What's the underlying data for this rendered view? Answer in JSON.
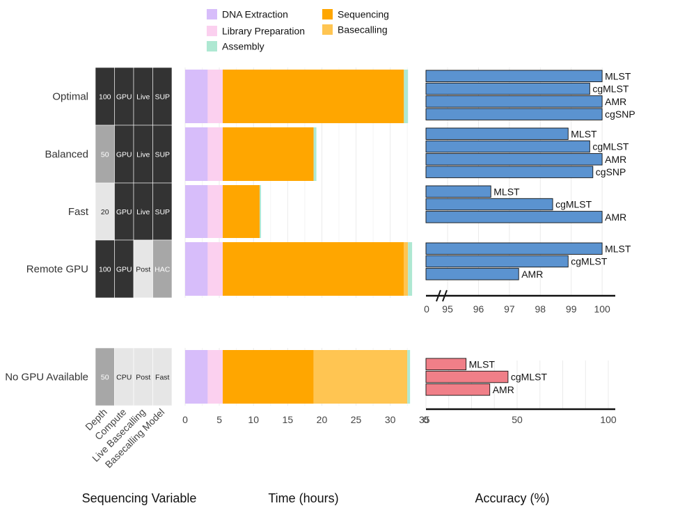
{
  "chart_data": {
    "type": "figure",
    "colors": {
      "dna_extraction": "#d7bdfa",
      "library_preparation": "#fbd0ef",
      "assembly": "#aee8d2",
      "sequencing": "#ffa600",
      "basecalling": "#ffc552",
      "accuracy_gpu": "#5b93d0",
      "accuracy_nogpu": "#f07f88",
      "dark_cell": "#333333",
      "mid_cell": "#a7a7a7",
      "light_cell": "#e6e6e6",
      "grid": "#ebebeb"
    },
    "legend": [
      {
        "key": "dna_extraction",
        "label": "DNA Extraction"
      },
      {
        "key": "library_preparation",
        "label": "Library Preparation"
      },
      {
        "key": "assembly",
        "label": "Assembly"
      },
      {
        "key": "sequencing",
        "label": "Sequencing"
      },
      {
        "key": "basecalling",
        "label": "Basecalling"
      }
    ],
    "scenarios": [
      {
        "name": "Optimal",
        "variables": [
          {
            "value": "100",
            "level": "dark"
          },
          {
            "value": "GPU",
            "level": "dark"
          },
          {
            "value": "Live",
            "level": "dark"
          },
          {
            "value": "SUP",
            "level": "dark"
          }
        ],
        "time_segments": [
          {
            "key": "dna_extraction",
            "hours": 3.3
          },
          {
            "key": "library_preparation",
            "hours": 2.2
          },
          {
            "key": "sequencing",
            "hours": 26.5
          },
          {
            "key": "assembly",
            "hours": 0.6
          }
        ],
        "accuracy": [
          {
            "metric": "MLST",
            "value": 100
          },
          {
            "metric": "cgMLST",
            "value": 99.6
          },
          {
            "metric": "AMR",
            "value": 100
          },
          {
            "metric": "cgSNP",
            "value": 100
          }
        ]
      },
      {
        "name": "Balanced",
        "variables": [
          {
            "value": "50",
            "level": "mid"
          },
          {
            "value": "GPU",
            "level": "dark"
          },
          {
            "value": "Live",
            "level": "dark"
          },
          {
            "value": "SUP",
            "level": "dark"
          }
        ],
        "time_segments": [
          {
            "key": "dna_extraction",
            "hours": 3.3
          },
          {
            "key": "library_preparation",
            "hours": 2.2
          },
          {
            "key": "sequencing",
            "hours": 13.3
          },
          {
            "key": "assembly",
            "hours": 0.4
          }
        ],
        "accuracy": [
          {
            "metric": "MLST",
            "value": 98.9
          },
          {
            "metric": "cgMLST",
            "value": 99.6
          },
          {
            "metric": "AMR",
            "value": 100
          },
          {
            "metric": "cgSNP",
            "value": 99.7
          }
        ]
      },
      {
        "name": "Fast",
        "variables": [
          {
            "value": "20",
            "level": "light"
          },
          {
            "value": "GPU",
            "level": "dark"
          },
          {
            "value": "Live",
            "level": "dark"
          },
          {
            "value": "SUP",
            "level": "dark"
          }
        ],
        "time_segments": [
          {
            "key": "dna_extraction",
            "hours": 3.3
          },
          {
            "key": "library_preparation",
            "hours": 2.2
          },
          {
            "key": "sequencing",
            "hours": 5.4
          },
          {
            "key": "assembly",
            "hours": 0.2
          }
        ],
        "accuracy": [
          {
            "metric": "MLST",
            "value": 96.4
          },
          {
            "metric": "cgMLST",
            "value": 98.4
          },
          {
            "metric": "AMR",
            "value": 100
          }
        ]
      },
      {
        "name": "Remote GPU",
        "variables": [
          {
            "value": "100",
            "level": "dark"
          },
          {
            "value": "GPU",
            "level": "dark"
          },
          {
            "value": "Post",
            "level": "light"
          },
          {
            "value": "HAC",
            "level": "mid"
          }
        ],
        "time_segments": [
          {
            "key": "dna_extraction",
            "hours": 3.3
          },
          {
            "key": "library_preparation",
            "hours": 2.2
          },
          {
            "key": "sequencing",
            "hours": 26.5
          },
          {
            "key": "basecalling",
            "hours": 0.6
          },
          {
            "key": "assembly",
            "hours": 0.6
          }
        ],
        "accuracy": [
          {
            "metric": "MLST",
            "value": 100
          },
          {
            "metric": "cgMLST",
            "value": 98.9
          },
          {
            "metric": "AMR",
            "value": 97.3
          }
        ]
      },
      {
        "name": "No GPU Available",
        "variables": [
          {
            "value": "50",
            "level": "mid"
          },
          {
            "value": "CPU",
            "level": "light"
          },
          {
            "value": "Post",
            "level": "light"
          },
          {
            "value": "Fast",
            "level": "light"
          }
        ],
        "time_segments": [
          {
            "key": "dna_extraction",
            "hours": 3.3
          },
          {
            "key": "library_preparation",
            "hours": 2.2
          },
          {
            "key": "sequencing",
            "hours": 13.3
          },
          {
            "key": "basecalling",
            "hours": 13.7
          },
          {
            "key": "assembly",
            "hours": 0.4
          }
        ],
        "accuracy": [
          {
            "metric": "MLST",
            "value": 22
          },
          {
            "metric": "cgMLST",
            "value": 45
          },
          {
            "metric": "AMR",
            "value": 35
          }
        ]
      }
    ],
    "variable_axis_labels": [
      "Depth",
      "Compute",
      "Live Basecalling",
      "Basecalling Model"
    ],
    "time_axis": {
      "ticks": [
        0,
        5,
        10,
        15,
        20,
        25,
        30,
        35
      ],
      "range": [
        0,
        33.8
      ]
    },
    "accuracy_axis_gpu": {
      "break_label": "0",
      "ticks": [
        95,
        96,
        97,
        98,
        99,
        100
      ],
      "range": [
        94.3,
        100.2
      ]
    },
    "accuracy_axis_nogpu": {
      "ticks": [
        0,
        50,
        100
      ],
      "range": [
        0,
        100
      ]
    },
    "xlabels": {
      "variables": "Sequencing Variable",
      "time": "Time (hours)",
      "accuracy": "Accuracy (%)"
    }
  }
}
